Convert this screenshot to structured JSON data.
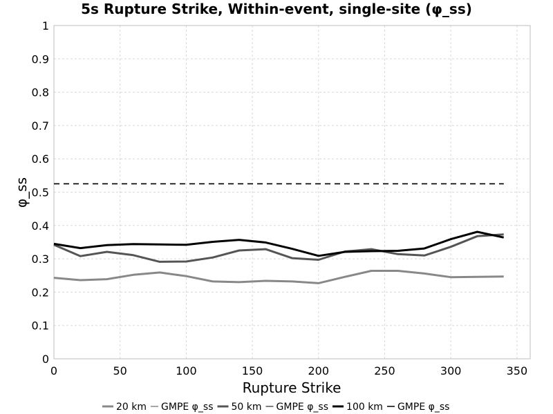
{
  "chart_data": {
    "type": "line",
    "title": "5s Rupture Strike, Within-event, single-site (φ_ss)",
    "xlabel": "Rupture Strike",
    "ylabel": "φ_ss",
    "xlim": [
      0,
      360
    ],
    "ylim": [
      0,
      1
    ],
    "x_ticks": [
      0,
      50,
      100,
      150,
      200,
      250,
      300,
      350
    ],
    "y_ticks": [
      0,
      0.1,
      0.2,
      0.3,
      0.4,
      0.5,
      0.6,
      0.7,
      0.8,
      0.9,
      1
    ],
    "y_tick_labels": [
      "0",
      "0.1",
      "0.2",
      "0.3",
      "0.4",
      "0.5",
      "0.6",
      "0.7",
      "0.8",
      "0.9",
      "1"
    ],
    "grid": true,
    "legend_position": "bottom",
    "x": [
      0,
      20,
      40,
      60,
      80,
      100,
      120,
      140,
      160,
      180,
      200,
      220,
      240,
      260,
      280,
      300,
      320,
      340
    ],
    "series": [
      {
        "name": "20 km",
        "color": "#888888",
        "style": "solid",
        "values": [
          0.243,
          0.236,
          0.239,
          0.252,
          0.259,
          0.248,
          0.232,
          0.23,
          0.234,
          0.232,
          0.227,
          0.246,
          0.264,
          0.264,
          0.256,
          0.245,
          0.246,
          0.247
        ]
      },
      {
        "name": "GMPE φ_ss",
        "color": "#888888",
        "style": "dashed",
        "values": [
          0.525,
          0.525,
          0.525,
          0.525,
          0.525,
          0.525,
          0.525,
          0.525,
          0.525,
          0.525,
          0.525,
          0.525,
          0.525,
          0.525,
          0.525,
          0.525,
          0.525,
          0.525
        ]
      },
      {
        "name": "50 km",
        "color": "#555555",
        "style": "solid",
        "values": [
          0.342,
          0.308,
          0.321,
          0.311,
          0.291,
          0.292,
          0.304,
          0.325,
          0.329,
          0.302,
          0.297,
          0.322,
          0.329,
          0.314,
          0.31,
          0.336,
          0.368,
          0.373
        ]
      },
      {
        "name": "GMPE φ_ss",
        "color": "#555555",
        "style": "dashed",
        "values": [
          0.525,
          0.525,
          0.525,
          0.525,
          0.525,
          0.525,
          0.525,
          0.525,
          0.525,
          0.525,
          0.525,
          0.525,
          0.525,
          0.525,
          0.525,
          0.525,
          0.525,
          0.525
        ]
      },
      {
        "name": "100 km",
        "color": "#000000",
        "style": "solid",
        "values": [
          0.345,
          0.332,
          0.341,
          0.344,
          0.343,
          0.342,
          0.351,
          0.357,
          0.349,
          0.33,
          0.309,
          0.321,
          0.323,
          0.324,
          0.331,
          0.359,
          0.381,
          0.364
        ]
      },
      {
        "name": "GMPE φ_ss",
        "color": "#000000",
        "style": "dashed",
        "values": [
          0.525,
          0.525,
          0.525,
          0.525,
          0.525,
          0.525,
          0.525,
          0.525,
          0.525,
          0.525,
          0.525,
          0.525,
          0.525,
          0.525,
          0.525,
          0.525,
          0.525,
          0.525
        ]
      }
    ]
  }
}
